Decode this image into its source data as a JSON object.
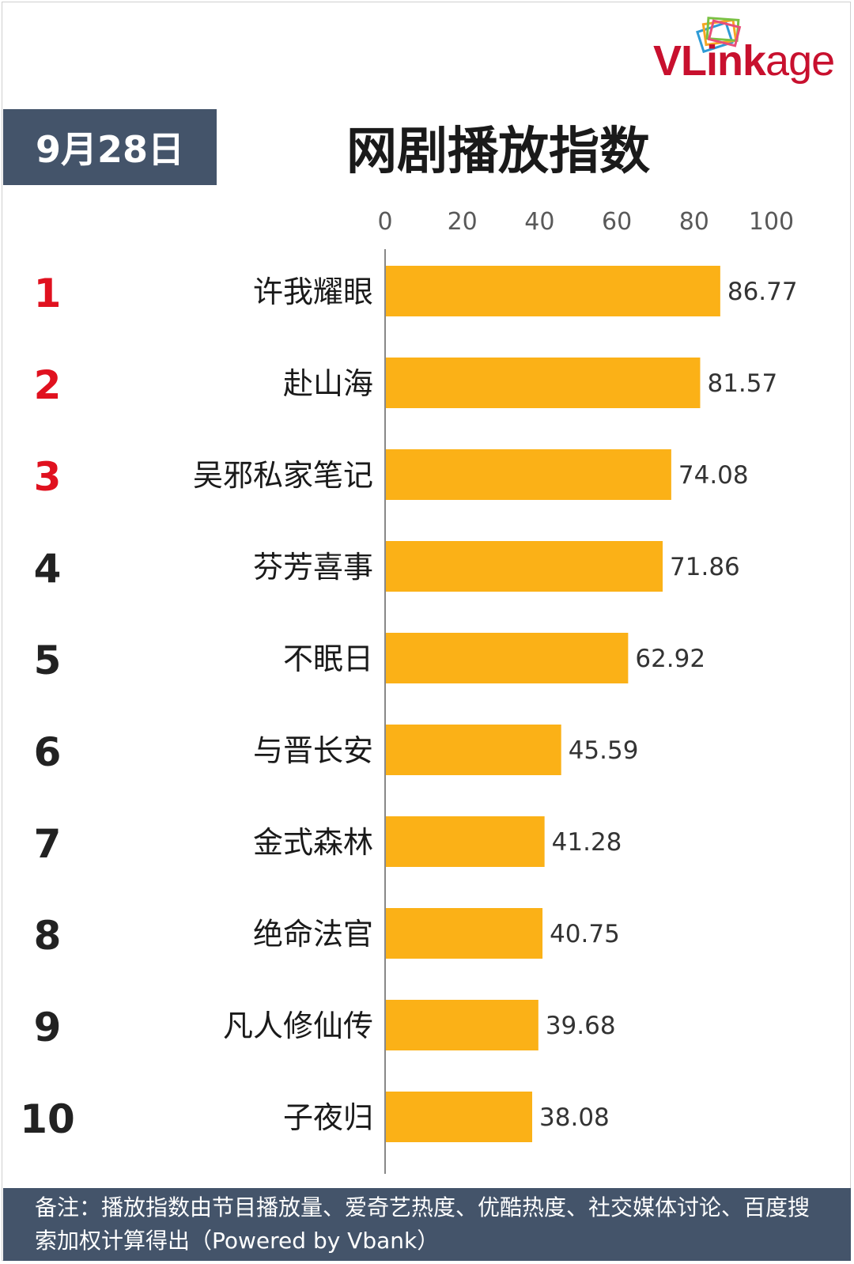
{
  "header": {
    "logo_text_main": "VLink",
    "logo_text_tail": "age",
    "date_label": "9月28日",
    "title": "网剧播放指数"
  },
  "colors": {
    "bar": "#fbb117",
    "rank_top": "#e0111f",
    "rank_other": "#222222",
    "header_bg": "#44546a",
    "logo_red": "#c8102e"
  },
  "chart_data": {
    "type": "bar",
    "orientation": "horizontal",
    "title": "网剧播放指数",
    "xlim": [
      0,
      100
    ],
    "x_ticks": [
      0,
      20,
      40,
      60,
      80,
      100
    ],
    "ranks": [
      "1",
      "2",
      "3",
      "4",
      "5",
      "6",
      "7",
      "8",
      "9",
      "10"
    ],
    "categories": [
      "许我耀眼",
      "赴山海",
      "吴邪私家笔记",
      "芬芳喜事",
      "不眠日",
      "与晋长安",
      "金式森林",
      "绝命法官",
      "凡人修仙传",
      "子夜归"
    ],
    "values": [
      86.77,
      81.57,
      74.08,
      71.86,
      62.92,
      45.59,
      41.28,
      40.75,
      39.68,
      38.08
    ],
    "value_labels": [
      "86.77",
      "81.57",
      "74.08",
      "71.86",
      "62.92",
      "45.59",
      "41.28",
      "40.75",
      "39.68",
      "38.08"
    ],
    "grid": false,
    "legend": "none"
  },
  "footer": {
    "note": "备注：播放指数由节目播放量、爱奇艺热度、优酷热度、社交媒体讨论、百度搜索加权计算得出（Powered by Vbank）"
  }
}
